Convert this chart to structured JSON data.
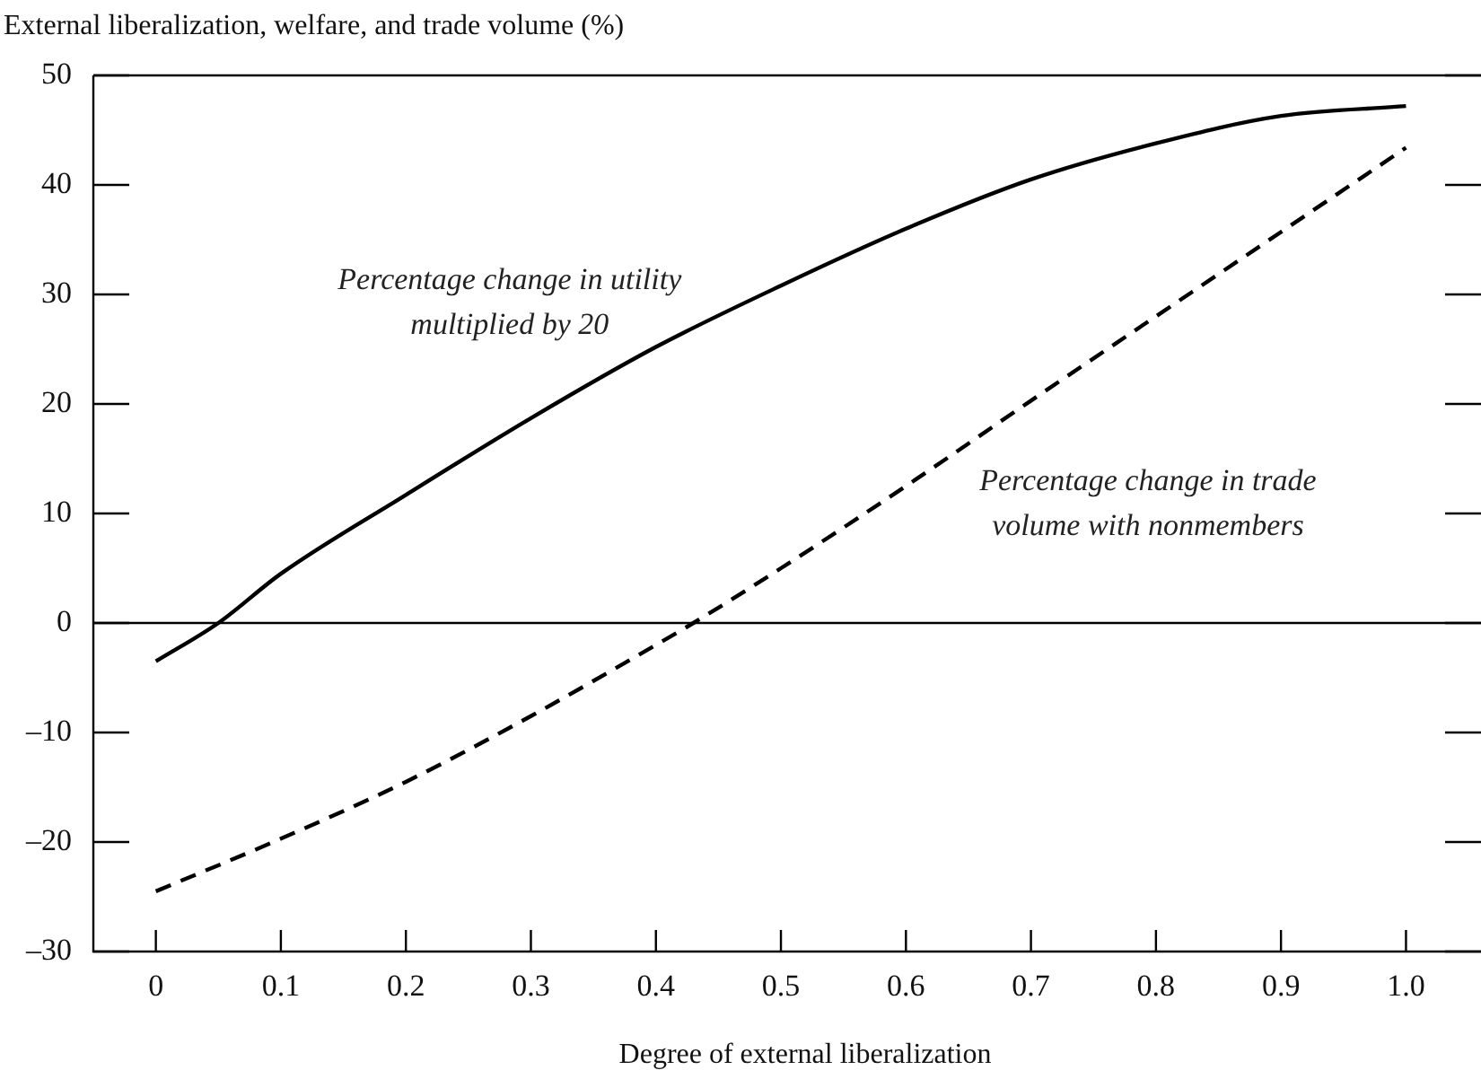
{
  "chart_data": {
    "type": "line",
    "ylabel": "External liberalization, welfare, and trade volume (%)",
    "xlabel": "Degree of external liberalization",
    "xlim": [
      -0.05,
      1.06
    ],
    "xticks": [
      0,
      0.1,
      0.2,
      0.3,
      0.4,
      0.5,
      0.6,
      0.7,
      0.8,
      0.9,
      {
        "value": 1,
        "label": "1.0"
      }
    ],
    "ylim": [
      -30,
      50
    ],
    "yticks": [
      {
        "value": -30,
        "label": "–30"
      },
      {
        "value": -20,
        "label": "–20"
      },
      {
        "value": -10,
        "label": "–10"
      },
      0,
      10,
      20,
      30,
      40,
      50
    ],
    "grid": false,
    "legend": false,
    "marker": "none",
    "ref_lines": [
      {
        "axis": "y",
        "value": 0,
        "color": "#000000"
      }
    ],
    "series": [
      {
        "name": "Percentage change in utility multiplied by 20",
        "color": "#000000",
        "line_style": "solid",
        "x": [
          0,
          0.05,
          0.1,
          0.2,
          0.3,
          0.4,
          0.5,
          0.6,
          0.7,
          0.8,
          0.9,
          1.0
        ],
        "values": [
          -3.5,
          0,
          4.5,
          11.7,
          18.7,
          25.2,
          30.8,
          36,
          40.5,
          43.8,
          46.3,
          47.2
        ]
      },
      {
        "name": "Percentage change in trade volume with nonmembers",
        "color": "#000000",
        "line_style": "dashed",
        "x": [
          0,
          0.1,
          0.2,
          0.3,
          0.4,
          0.43,
          0.5,
          0.6,
          0.7,
          0.8,
          0.9,
          1.0
        ],
        "values": [
          -24.5,
          -19.7,
          -14.5,
          -8.5,
          -2,
          0,
          5,
          12.5,
          20.3,
          28,
          35.7,
          43.4
        ]
      }
    ]
  }
}
